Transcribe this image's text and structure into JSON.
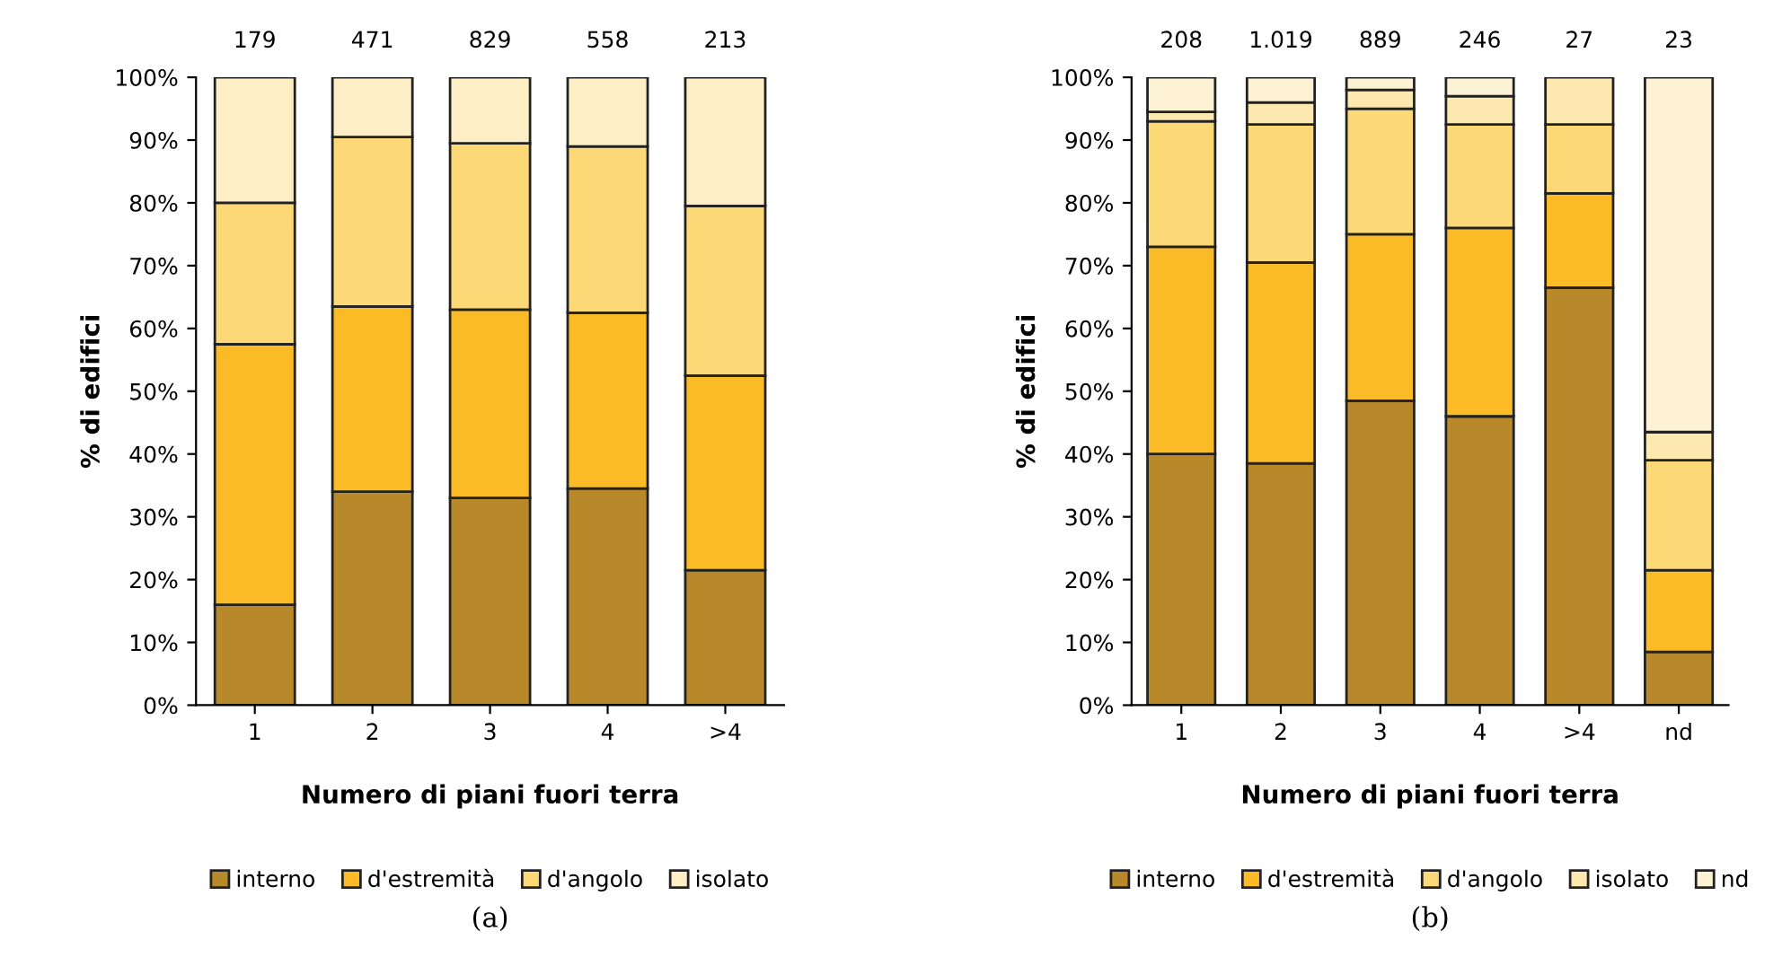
{
  "chart_data": [
    {
      "type": "bar",
      "stacked": true,
      "categories": [
        "1",
        "2",
        "3",
        "4",
        ">4"
      ],
      "xlabel": "Numero di piani fuori terra",
      "ylabel": "% di edifici",
      "ylim": [
        0,
        100
      ],
      "yticks": [
        {
          "value": 0,
          "label": "0%"
        },
        {
          "value": 10,
          "label": "10%"
        },
        {
          "value": 20,
          "label": "20%"
        },
        {
          "value": 30,
          "label": "30%"
        },
        {
          "value": 40,
          "label": "40%"
        },
        {
          "value": 50,
          "label": "50%"
        },
        {
          "value": 60,
          "label": "60%"
        },
        {
          "value": 70,
          "label": "70%"
        },
        {
          "value": 80,
          "label": "80%"
        },
        {
          "value": 90,
          "label": "90%"
        },
        {
          "value": 100,
          "label": "100%"
        }
      ],
      "legend": "bottom",
      "grid": false,
      "series": [
        {
          "name": "interno",
          "color": "#b8892a",
          "values": [
            16,
            34,
            33,
            34.5,
            21.5
          ]
        },
        {
          "name": "d'estremità",
          "color": "#fbbb27",
          "values": [
            41.5,
            29.5,
            30,
            28,
            31
          ]
        },
        {
          "name": "d'angolo",
          "color": "#fcd877",
          "values": [
            22.5,
            27,
            26.5,
            26.5,
            27
          ]
        },
        {
          "name": "isolato",
          "color": "#fdeec6",
          "values": [
            20,
            9.5,
            10.5,
            11,
            20.5
          ]
        }
      ],
      "annotations": [
        "179",
        "471",
        "829",
        "558",
        "213",
        "(a)"
      ]
    },
    {
      "type": "bar",
      "stacked": true,
      "categories": [
        "1",
        "2",
        "3",
        "4",
        ">4",
        "nd"
      ],
      "xlabel": "Numero di piani fuori terra",
      "ylabel": "% di edifici",
      "ylim": [
        0,
        100
      ],
      "yticks": [
        {
          "value": 0,
          "label": "0%"
        },
        {
          "value": 10,
          "label": "10%"
        },
        {
          "value": 20,
          "label": "20%"
        },
        {
          "value": 30,
          "label": "30%"
        },
        {
          "value": 40,
          "label": "40%"
        },
        {
          "value": 50,
          "label": "50%"
        },
        {
          "value": 60,
          "label": "60%"
        },
        {
          "value": 70,
          "label": "70%"
        },
        {
          "value": 80,
          "label": "80%"
        },
        {
          "value": 90,
          "label": "90%"
        },
        {
          "value": 100,
          "label": "100%"
        }
      ],
      "legend": "bottom",
      "grid": false,
      "series": [
        {
          "name": "interno",
          "color": "#b8892a",
          "values": [
            40,
            38.5,
            48.5,
            46,
            66.5,
            8.5
          ]
        },
        {
          "name": "d'estremità",
          "color": "#fbbb27",
          "values": [
            33,
            32,
            26.5,
            30,
            15,
            13
          ]
        },
        {
          "name": "d'angolo",
          "color": "#fcd877",
          "values": [
            20,
            22,
            20,
            16.5,
            11,
            17.5
          ]
        },
        {
          "name": "isolato",
          "color": "#fde9b0",
          "values": [
            1.5,
            3.5,
            3,
            4.5,
            7.5,
            4.5
          ]
        },
        {
          "name": "nd",
          "color": "#fef2d4",
          "values": [
            5.5,
            4,
            2,
            3,
            null,
            56.5
          ]
        }
      ],
      "annotations": [
        "208",
        "1.019",
        "889",
        "246",
        "27",
        "23",
        "(b)"
      ]
    }
  ]
}
